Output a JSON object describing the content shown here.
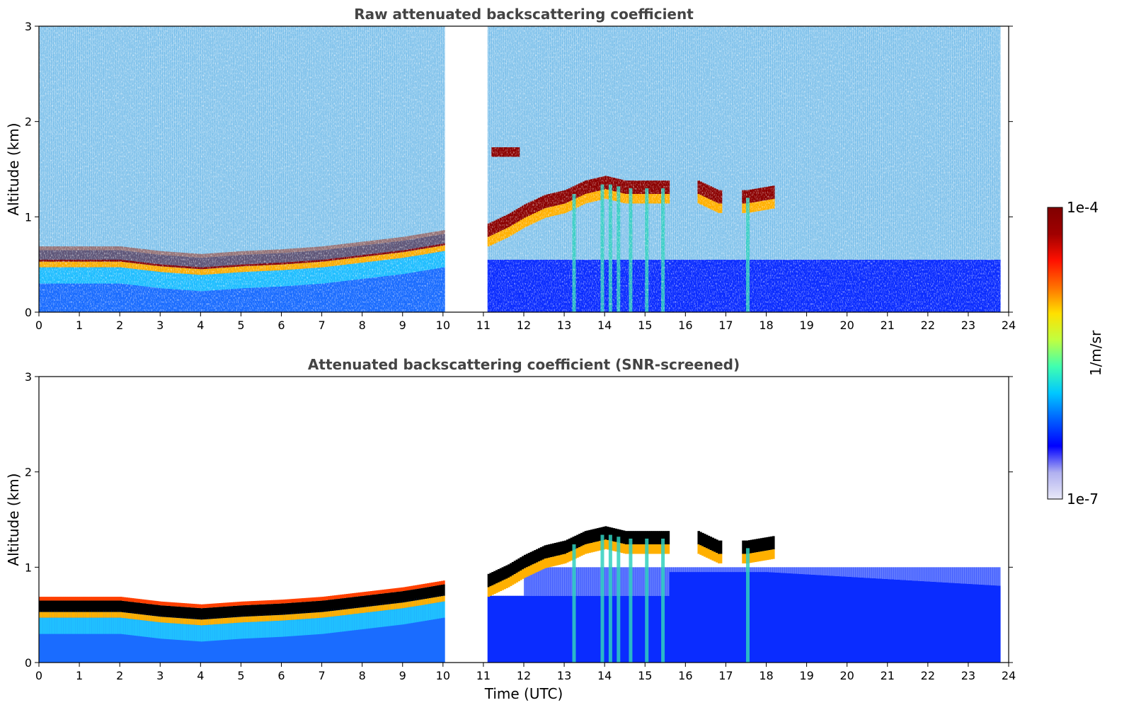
{
  "chart_data": [
    {
      "type": "heatmap",
      "title": "Raw attenuated backscattering coefficient",
      "xlabel": "",
      "ylabel": "Altitude (km)",
      "xlim": [
        0,
        24
      ],
      "ylim": [
        0,
        3
      ],
      "xticks": [
        "0",
        "1",
        "2",
        "3",
        "4",
        "5",
        "6",
        "7",
        "8",
        "9",
        "10",
        "11",
        "12",
        "13",
        "14",
        "15",
        "16",
        "17",
        "18",
        "19",
        "20",
        "21",
        "22",
        "23",
        "24"
      ],
      "yticks": [
        "0",
        "1",
        "2",
        "3"
      ],
      "data_gaps": [
        [
          0,
          0.0
        ],
        [
          10.05,
          11.1
        ],
        [
          23.8,
          24
        ]
      ],
      "boundary_layer_top_km": {
        "time": [
          0,
          1,
          2,
          3,
          4,
          5,
          6,
          7,
          8,
          9,
          10
        ],
        "altitude": [
          0.55,
          0.55,
          0.55,
          0.5,
          0.47,
          0.5,
          0.52,
          0.55,
          0.6,
          0.65,
          0.72
        ]
      },
      "cloud_layer_km": {
        "time": [
          11.1,
          11.6,
          12,
          12.5,
          13,
          13.5,
          14,
          14.5,
          15,
          15.5,
          16.3,
          16.8,
          17.5,
          18.2
        ],
        "altitude": [
          0.85,
          0.95,
          1.05,
          1.15,
          1.2,
          1.3,
          1.35,
          1.3,
          1.3,
          1.3,
          1.3,
          1.2,
          1.2,
          1.25
        ]
      },
      "elevated_layer_km": {
        "time": [
          11.2,
          11.9
        ],
        "altitude": 1.68
      }
    },
    {
      "type": "heatmap",
      "title": "Attenuated backscattering coefficient (SNR-screened)",
      "xlabel": "Time (UTC)",
      "ylabel": "Altitude (km)",
      "xlim": [
        0,
        24
      ],
      "ylim": [
        0,
        3
      ],
      "xticks": [
        "0",
        "1",
        "2",
        "3",
        "4",
        "5",
        "6",
        "7",
        "8",
        "9",
        "10",
        "11",
        "12",
        "13",
        "14",
        "15",
        "16",
        "17",
        "18",
        "19",
        "20",
        "21",
        "22",
        "23",
        "24"
      ],
      "yticks": [
        "0",
        "1",
        "2",
        "3"
      ],
      "data_gaps": [
        [
          10.05,
          11.1
        ],
        [
          23.8,
          24
        ]
      ],
      "boundary_layer_top_km": {
        "time": [
          0,
          1,
          2,
          3,
          4,
          5,
          6,
          7,
          8,
          9,
          10
        ],
        "altitude": [
          0.55,
          0.55,
          0.55,
          0.5,
          0.47,
          0.5,
          0.52,
          0.55,
          0.6,
          0.65,
          0.72
        ]
      },
      "cloud_layer_km": {
        "time": [
          11.1,
          11.6,
          12,
          12.5,
          13,
          13.5,
          14,
          14.5,
          15,
          15.5,
          16.3,
          16.8,
          17.5,
          18.2
        ],
        "altitude": [
          0.85,
          0.95,
          1.05,
          1.15,
          1.2,
          1.3,
          1.35,
          1.3,
          1.3,
          1.3,
          1.3,
          1.2,
          1.2,
          1.25
        ]
      }
    }
  ],
  "colorbar": {
    "label": "1/m/sr",
    "max_label": "1e-4",
    "min_label": "1e-7",
    "colormap": [
      "#e8e8f8",
      "#b0b0f0",
      "#0000ff",
      "#0060ff",
      "#00c8ff",
      "#40ffb0",
      "#c0ff40",
      "#ffe000",
      "#ff7000",
      "#ff1000",
      "#a00000",
      "#800000"
    ]
  },
  "colors": {
    "saturated_screened": "#000000",
    "title_gray": "#444444",
    "background": "#ffffff"
  }
}
